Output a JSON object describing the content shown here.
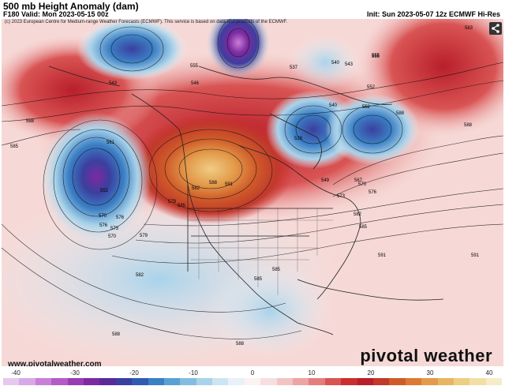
{
  "header": {
    "title": "500 mb Height Anomaly (dam)",
    "valid": "F180 Valid: Mon 2023-05-15 00z",
    "init": "Init: Sun 2023-05-07 12z ECMWF Hi-Res"
  },
  "map": {
    "copyright": "(c) 2023 European Centre for Medium-range Weather Forecasts (ECMWF). This service is based on data and products of the ECMWF.",
    "watermark": "pivotal weather",
    "website": "www.pivotalweather.com",
    "share_icon": "share-icon",
    "contour_labels": [
      {
        "text": "588"
      },
      {
        "text": "585"
      },
      {
        "text": "561"
      },
      {
        "text": "552"
      },
      {
        "text": "570"
      },
      {
        "text": "576"
      },
      {
        "text": "579"
      },
      {
        "text": "582"
      },
      {
        "text": "585"
      },
      {
        "text": "588"
      },
      {
        "text": "591"
      },
      {
        "text": "579"
      },
      {
        "text": "576"
      },
      {
        "text": "573"
      },
      {
        "text": "570"
      },
      {
        "text": "555"
      },
      {
        "text": "546"
      },
      {
        "text": "543"
      },
      {
        "text": "540"
      },
      {
        "text": "537"
      },
      {
        "text": "528"
      },
      {
        "text": "549"
      },
      {
        "text": "552"
      },
      {
        "text": "555"
      },
      {
        "text": "567"
      },
      {
        "text": "570"
      },
      {
        "text": "573"
      },
      {
        "text": "576"
      },
      {
        "text": "582"
      },
      {
        "text": "585"
      },
      {
        "text": "588"
      },
      {
        "text": "591"
      },
      {
        "text": "588"
      },
      {
        "text": "585"
      },
      {
        "text": "582"
      },
      {
        "text": "588"
      },
      {
        "text": "591"
      },
      {
        "text": "583"
      },
      {
        "text": "540"
      },
      {
        "text": "543"
      },
      {
        "text": "552"
      },
      {
        "text": "555"
      },
      {
        "text": "585"
      },
      {
        "text": "588"
      }
    ]
  },
  "colorbar": {
    "ticks": [
      "-40",
      "-30",
      "-20",
      "-10",
      "0",
      "10",
      "20",
      "30",
      "40"
    ],
    "colors": [
      "#e6c8ee",
      "#d9a8e6",
      "#c97fd8",
      "#b45bc7",
      "#9a3cb3",
      "#7d2aa0",
      "#5a2a9a",
      "#3b3f9f",
      "#2f5cb0",
      "#3b7fc4",
      "#5aa0d4",
      "#82bde0",
      "#a9d3ea",
      "#cde4f2",
      "#e8f1f8",
      "#fbf3f3",
      "#f8dede",
      "#f3c4c4",
      "#eda4a4",
      "#e47e7e",
      "#d95454",
      "#cc2e2e",
      "#b81f2a",
      "#c0392b",
      "#cf5b2a",
      "#da7a35",
      "#e39a4a",
      "#e8b563",
      "#efcd84",
      "#f3dfa6",
      "#f7ecc8"
    ]
  }
}
